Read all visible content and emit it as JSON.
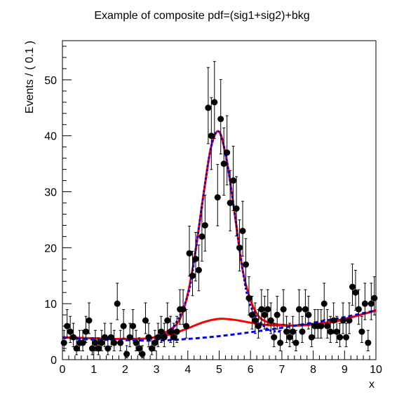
{
  "chart_data": {
    "type": "scatter",
    "title": "Example of composite pdf=(sig1+sig2)+bkg",
    "xlabel": "x",
    "ylabel": "Events / ( 0.1 )",
    "xlim": [
      0,
      10
    ],
    "ylim": [
      0,
      57
    ],
    "x_ticks": [
      0,
      1,
      2,
      3,
      4,
      5,
      6,
      7,
      8,
      9,
      10
    ],
    "y_ticks": [
      0,
      10,
      20,
      30,
      40,
      50
    ],
    "grid": false,
    "legend": "none",
    "colors": {
      "data": "#000000",
      "total_pdf": "#ff0000",
      "signal_pdf": "#0000ff",
      "bkg_pdf": "#0000ff"
    },
    "data_points": {
      "x": [
        0.05,
        0.15,
        0.25,
        0.35,
        0.45,
        0.55,
        0.65,
        0.75,
        0.85,
        0.95,
        1.05,
        1.15,
        1.25,
        1.35,
        1.45,
        1.55,
        1.65,
        1.75,
        1.85,
        1.95,
        2.05,
        2.15,
        2.25,
        2.35,
        2.45,
        2.55,
        2.65,
        2.75,
        2.85,
        2.95,
        3.05,
        3.15,
        3.25,
        3.35,
        3.45,
        3.55,
        3.65,
        3.75,
        3.85,
        3.95,
        4.05,
        4.15,
        4.25,
        4.35,
        4.45,
        4.55,
        4.65,
        4.75,
        4.85,
        4.95,
        5.05,
        5.15,
        5.25,
        5.35,
        5.45,
        5.55,
        5.65,
        5.75,
        5.85,
        5.95,
        6.05,
        6.15,
        6.25,
        6.35,
        6.45,
        6.55,
        6.65,
        6.75,
        6.85,
        6.95,
        7.05,
        7.15,
        7.25,
        7.35,
        7.45,
        7.55,
        7.65,
        7.75,
        7.85,
        7.95,
        8.05,
        8.15,
        8.25,
        8.35,
        8.45,
        8.55,
        8.65,
        8.75,
        8.85,
        8.95,
        9.05,
        9.15,
        9.25,
        9.35,
        9.45,
        9.55,
        9.65,
        9.75,
        9.85,
        9.95
      ],
      "y": [
        3,
        6,
        5,
        4,
        2,
        3,
        3,
        5,
        7,
        2,
        3,
        2,
        3,
        4,
        2,
        4,
        3,
        10,
        3,
        6,
        1,
        4,
        6,
        3,
        2,
        1,
        7,
        4,
        2,
        3,
        4,
        5,
        4,
        7,
        5,
        4,
        5,
        9,
        9,
        6,
        19,
        15,
        18,
        16,
        22,
        24,
        45,
        40,
        46,
        29,
        43,
        35,
        37,
        28,
        32,
        27,
        20,
        23,
        17,
        11,
        8,
        7,
        6,
        9,
        8,
        9,
        7,
        4,
        8,
        3,
        9,
        5,
        4,
        5,
        3,
        9,
        5,
        9,
        8,
        4,
        6,
        6,
        6,
        10,
        6,
        5,
        7,
        5,
        4,
        7,
        4,
        7,
        13,
        12,
        9,
        5,
        10,
        3,
        10,
        11
      ]
    },
    "curves": [
      {
        "name": "total",
        "x": [
          0,
          0.5,
          1,
          1.5,
          2,
          2.5,
          3,
          3.25,
          3.5,
          3.75,
          4,
          4.25,
          4.5,
          4.75,
          5,
          5.25,
          5.5,
          5.75,
          6,
          6.25,
          6.5,
          6.75,
          7,
          7.5,
          8,
          8.5,
          9,
          9.5,
          10
        ],
        "y": [
          4.0,
          3.9,
          3.8,
          3.7,
          3.7,
          3.7,
          4.1,
          4.8,
          5.6,
          7.3,
          11.8,
          19.6,
          29.5,
          38.2,
          40.7,
          35.3,
          25.9,
          16.0,
          10.6,
          7.8,
          6.8,
          6.4,
          6.2,
          6.1,
          6.3,
          6.7,
          7.3,
          8.0,
          8.8
        ]
      },
      {
        "name": "sig2_plus_bkg",
        "x": [
          0,
          0.5,
          1,
          1.5,
          2,
          2.5,
          3,
          3.5,
          4,
          4.5,
          5,
          5.5,
          6,
          6.5,
          7,
          7.5,
          8,
          8.5,
          9,
          9.5,
          10
        ],
        "y": [
          4.0,
          3.9,
          3.8,
          3.7,
          3.7,
          3.7,
          4.0,
          4.6,
          5.6,
          6.7,
          7.3,
          7.1,
          6.6,
          6.2,
          6.1,
          6.1,
          6.3,
          6.6,
          7.2,
          8.0,
          8.8
        ]
      },
      {
        "name": "signal",
        "x": [
          3,
          3.5,
          4,
          4.25,
          4.5,
          4.75,
          5,
          5.25,
          5.5,
          5.75,
          6,
          6.5,
          7
        ],
        "y": [
          4.0,
          5.5,
          11.5,
          19.6,
          29.5,
          38.2,
          40.7,
          35.3,
          25.9,
          16.0,
          9.6,
          5.6,
          5.0
        ]
      },
      {
        "name": "bkg",
        "x": [
          0,
          1,
          2,
          3,
          4,
          5,
          6,
          7,
          8,
          9,
          10
        ],
        "y": [
          3.9,
          3.6,
          3.5,
          3.4,
          3.7,
          4.2,
          4.9,
          5.7,
          6.6,
          7.6,
          8.8
        ]
      }
    ]
  }
}
